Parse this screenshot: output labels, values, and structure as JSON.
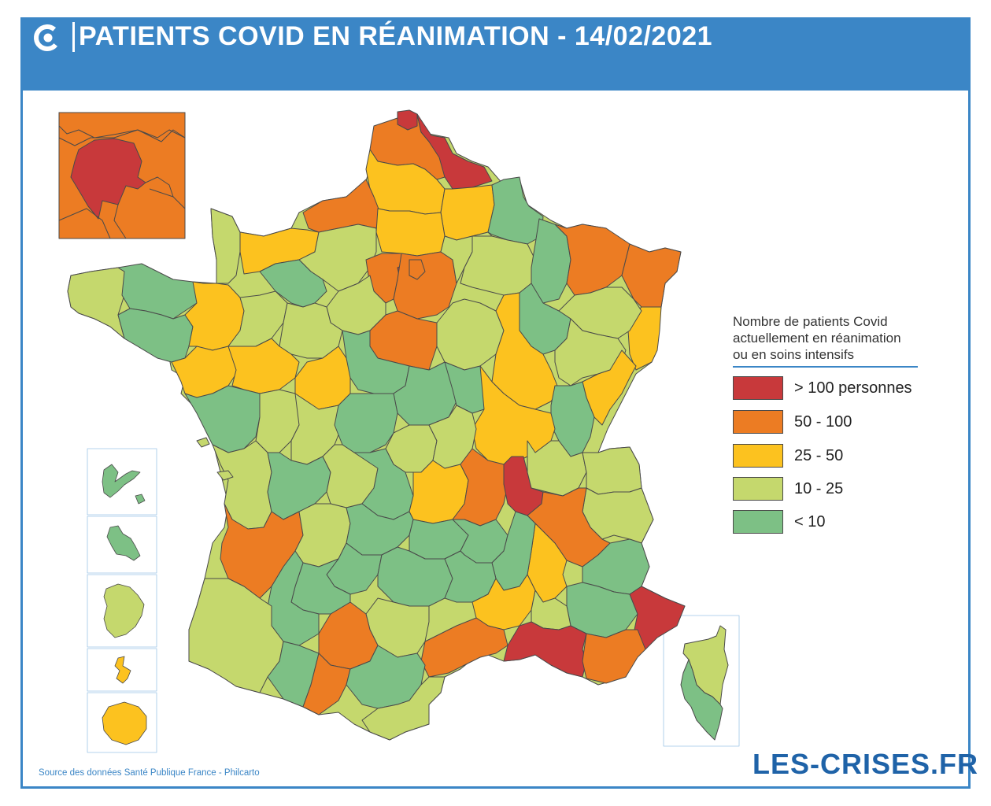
{
  "header": {
    "title": "PATIENTS COVID EN RÉANIMATION - 14/02/2021",
    "logo_icon": "les-crises-c-logo-icon"
  },
  "legend": {
    "title_lines": [
      "Nombre de patients Covid",
      "actuellement en réanimation",
      "ou en soins intensifs"
    ],
    "items": [
      {
        "label": "> 100 personnes",
        "color": "#c8393b"
      },
      {
        "label": "50 - 100",
        "color": "#ec7c23"
      },
      {
        "label": "25 - 50",
        "color": "#fcc21f"
      },
      {
        "label": "10 - 25",
        "color": "#c5d86d"
      },
      {
        "label": "< 10",
        "color": "#7dc085"
      }
    ]
  },
  "colors": {
    "red": "#c8393b",
    "orange": "#ec7c23",
    "yellow": "#fcc21f",
    "light_green": "#c5d86d",
    "green": "#7dc085",
    "brand_blue": "#3b86c6"
  },
  "footer": {
    "source": "Source des données Santé Publique France - Philcarto",
    "brand": "LES-CRISES.FR"
  }
}
